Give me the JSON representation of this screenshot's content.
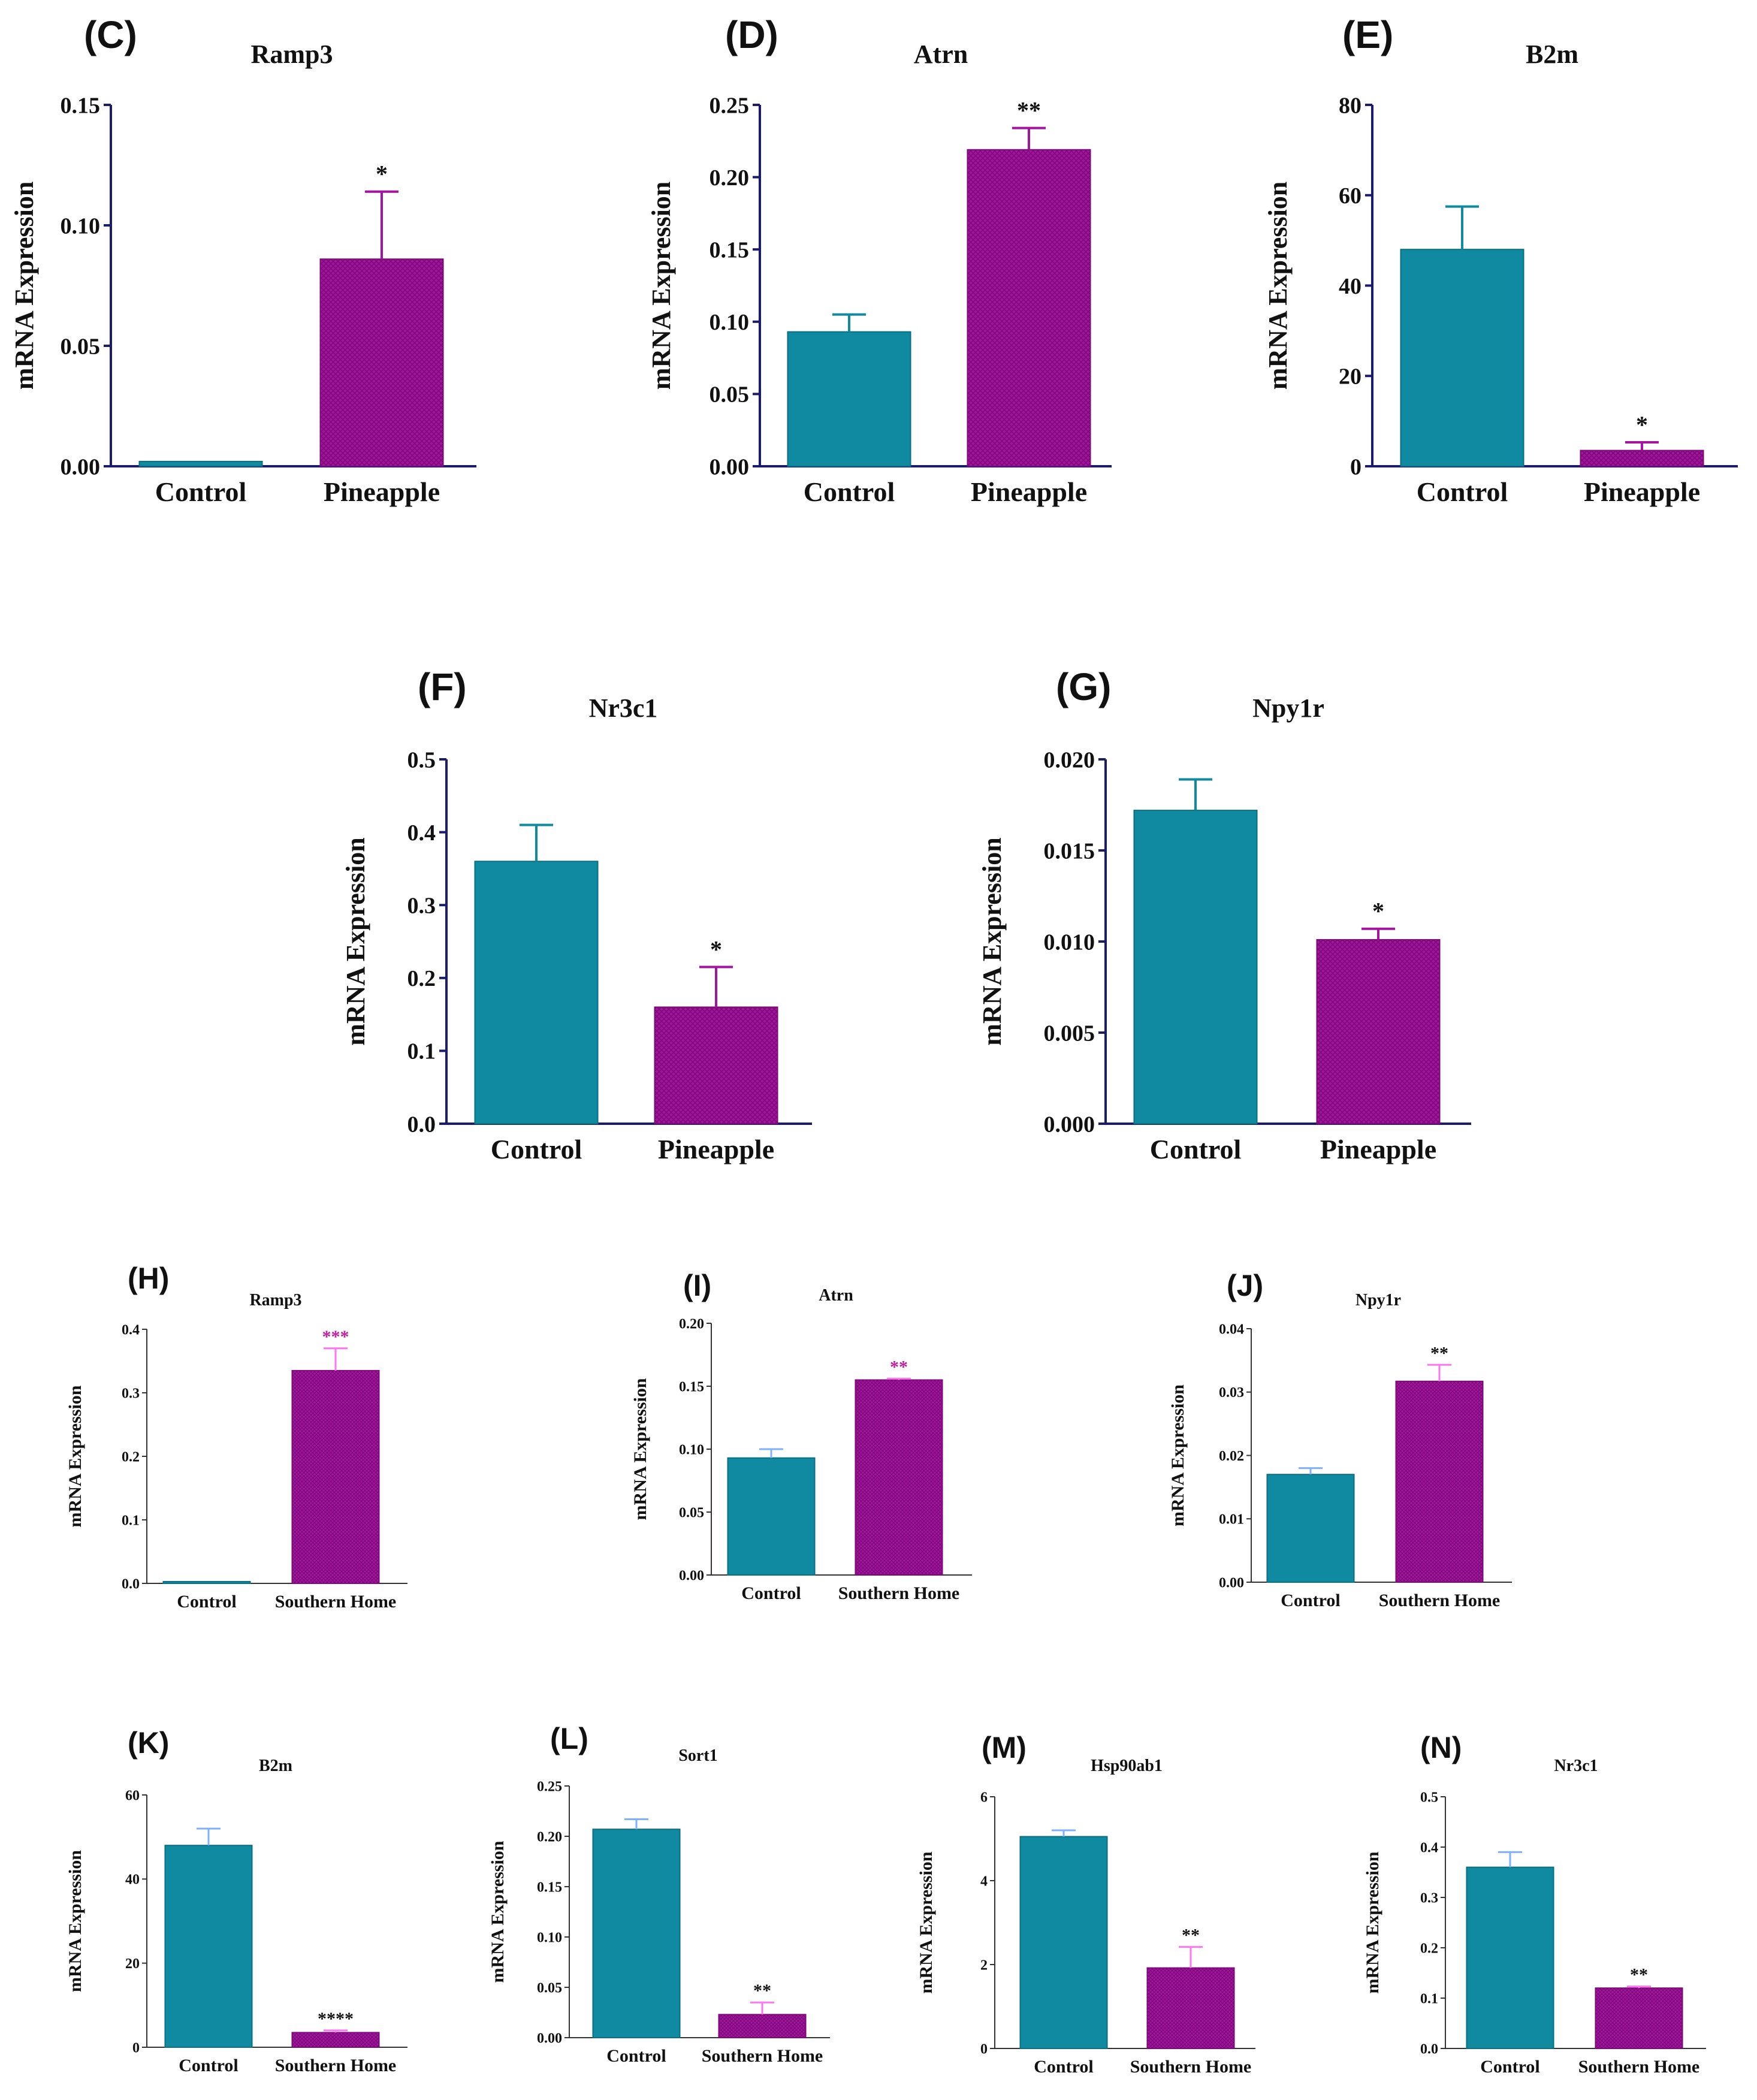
{
  "colors": {
    "control": "#0f8aa0",
    "control_stroke": "#0b6f82",
    "treatment": "#a3149f",
    "treatment_pattern_dot": "#7c0a78",
    "treatment_stroke": "#7c0a78",
    "axis_dark": "#1a1a6e",
    "axis_light": "#333333",
    "errbar_control_light": "#7fb0ff",
    "errbar_treatment_light": "#ff77f0",
    "sig_light_magenta": "#c0209e"
  },
  "chart_data": [
    {
      "panel": "(C)",
      "title": "Ramp3",
      "type": "bar",
      "ylabel": "mRNA Expression",
      "categories": [
        "Control",
        "Pineapple"
      ],
      "values": [
        0.002,
        0.086
      ],
      "errors": [
        0.0,
        0.028
      ],
      "significance": [
        "",
        "*"
      ],
      "ylim": [
        0,
        0.15
      ],
      "yticks": [
        0,
        0.05,
        0.1,
        0.15
      ],
      "ytick_labels": [
        "0.00",
        "0.05",
        "0.10",
        "0.15"
      ]
    },
    {
      "panel": "(D)",
      "title": "Atrn",
      "type": "bar",
      "ylabel": "mRNA Expression",
      "categories": [
        "Control",
        "Pineapple"
      ],
      "values": [
        0.093,
        0.219
      ],
      "errors": [
        0.012,
        0.015
      ],
      "significance": [
        "",
        "**"
      ],
      "ylim": [
        0,
        0.25
      ],
      "yticks": [
        0,
        0.05,
        0.1,
        0.15,
        0.2,
        0.25
      ],
      "ytick_labels": [
        "0.00",
        "0.05",
        "0.10",
        "0.15",
        "0.20",
        "0.25"
      ]
    },
    {
      "panel": "(E)",
      "title": "B2m",
      "type": "bar",
      "ylabel": "mRNA Expression",
      "categories": [
        "Control",
        "Pineapple"
      ],
      "values": [
        48,
        3.5
      ],
      "errors": [
        9.5,
        1.8
      ],
      "significance": [
        "",
        "*"
      ],
      "ylim": [
        0,
        80
      ],
      "yticks": [
        0,
        20,
        40,
        60,
        80
      ],
      "ytick_labels": [
        "0",
        "20",
        "40",
        "60",
        "80"
      ]
    },
    {
      "panel": "(F)",
      "title": "Nr3c1",
      "type": "bar",
      "ylabel": "mRNA Expression",
      "categories": [
        "Control",
        "Pineapple"
      ],
      "values": [
        0.36,
        0.16
      ],
      "errors": [
        0.05,
        0.055
      ],
      "significance": [
        "",
        "*"
      ],
      "ylim": [
        0,
        0.5
      ],
      "yticks": [
        0,
        0.1,
        0.2,
        0.3,
        0.4,
        0.5
      ],
      "ytick_labels": [
        "0.0",
        "0.1",
        "0.2",
        "0.3",
        "0.4",
        "0.5"
      ]
    },
    {
      "panel": "(G)",
      "title": "Npy1r",
      "type": "bar",
      "ylabel": "mRNA Expression",
      "categories": [
        "Control",
        "Pineapple"
      ],
      "values": [
        0.0172,
        0.0101
      ],
      "errors": [
        0.0017,
        0.0006
      ],
      "significance": [
        "",
        "*"
      ],
      "ylim": [
        0,
        0.02
      ],
      "yticks": [
        0,
        0.005,
        0.01,
        0.015,
        0.02
      ],
      "ytick_labels": [
        "0.000",
        "0.005",
        "0.010",
        "0.015",
        "0.020"
      ]
    },
    {
      "panel": "(H)",
      "title": "Ramp3",
      "type": "bar",
      "ylabel": "mRNA Expression",
      "categories": [
        "Control",
        "Southern Home"
      ],
      "values": [
        0.002,
        0.335
      ],
      "errors": [
        0.0,
        0.035
      ],
      "significance": [
        "",
        "***"
      ],
      "ylim": [
        0,
        0.4
      ],
      "yticks": [
        0,
        0.1,
        0.2,
        0.3,
        0.4
      ],
      "ytick_labels": [
        "0.0",
        "0.1",
        "0.2",
        "0.3",
        "0.4"
      ]
    },
    {
      "panel": "(I)",
      "title": "Atrn",
      "type": "bar",
      "ylabel": "mRNA Expression",
      "categories": [
        "Control",
        "Southern Home"
      ],
      "values": [
        0.093,
        0.155
      ],
      "errors": [
        0.007,
        0.001
      ],
      "significance": [
        "",
        "**"
      ],
      "ylim": [
        0,
        0.2
      ],
      "yticks": [
        0,
        0.05,
        0.1,
        0.15,
        0.2
      ],
      "ytick_labels": [
        "0.00",
        "0.05",
        "0.10",
        "0.15",
        "0.20"
      ]
    },
    {
      "panel": "(J)",
      "title": "Npy1r",
      "type": "bar",
      "ylabel": "mRNA Expression",
      "categories": [
        "Control",
        "Southern Home"
      ],
      "values": [
        0.017,
        0.0317
      ],
      "errors": [
        0.001,
        0.0026
      ],
      "significance": [
        "",
        "**"
      ],
      "ylim": [
        0,
        0.04
      ],
      "yticks": [
        0,
        0.01,
        0.02,
        0.03,
        0.04
      ],
      "ytick_labels": [
        "0.00",
        "0.01",
        "0.02",
        "0.03",
        "0.04"
      ]
    },
    {
      "panel": "(K)",
      "title": "B2m",
      "type": "bar",
      "ylabel": "mRNA Expression",
      "categories": [
        "Control",
        "Southern Home"
      ],
      "values": [
        48,
        3.5
      ],
      "errors": [
        4,
        0.5
      ],
      "significance": [
        "",
        "****"
      ],
      "ylim": [
        0,
        60
      ],
      "yticks": [
        0,
        20,
        40,
        60
      ],
      "ytick_labels": [
        "0",
        "20",
        "40",
        "60"
      ]
    },
    {
      "panel": "(L)",
      "title": "Sort1",
      "type": "bar",
      "ylabel": "mRNA Expression",
      "categories": [
        "Control",
        "Southern Home"
      ],
      "values": [
        0.207,
        0.023
      ],
      "errors": [
        0.01,
        0.012
      ],
      "significance": [
        "",
        "**"
      ],
      "ylim": [
        0,
        0.25
      ],
      "yticks": [
        0,
        0.05,
        0.1,
        0.15,
        0.2,
        0.25
      ],
      "ytick_labels": [
        "0.00",
        "0.05",
        "0.10",
        "0.15",
        "0.20",
        "0.25"
      ]
    },
    {
      "panel": "(M)",
      "title": "Hsp90ab1",
      "type": "bar",
      "ylabel": "mRNA Expression",
      "categories": [
        "Control",
        "Southern Home"
      ],
      "values": [
        5.05,
        1.92
      ],
      "errors": [
        0.15,
        0.5
      ],
      "significance": [
        "",
        "**"
      ],
      "ylim": [
        0,
        6
      ],
      "yticks": [
        0,
        2,
        4,
        6
      ],
      "ytick_labels": [
        "0",
        "2",
        "4",
        "6"
      ]
    },
    {
      "panel": "(N)",
      "title": "Nr3c1",
      "type": "bar",
      "ylabel": "mRNA Expression",
      "categories": [
        "Control",
        "Southern Home"
      ],
      "values": [
        0.36,
        0.12
      ],
      "errors": [
        0.03,
        0.003
      ],
      "significance": [
        "",
        "**"
      ],
      "ylim": [
        0,
        0.5
      ],
      "yticks": [
        0,
        0.1,
        0.2,
        0.3,
        0.4,
        0.5
      ],
      "ytick_labels": [
        "0.0",
        "0.1",
        "0.2",
        "0.3",
        "0.4",
        "0.5"
      ]
    }
  ]
}
